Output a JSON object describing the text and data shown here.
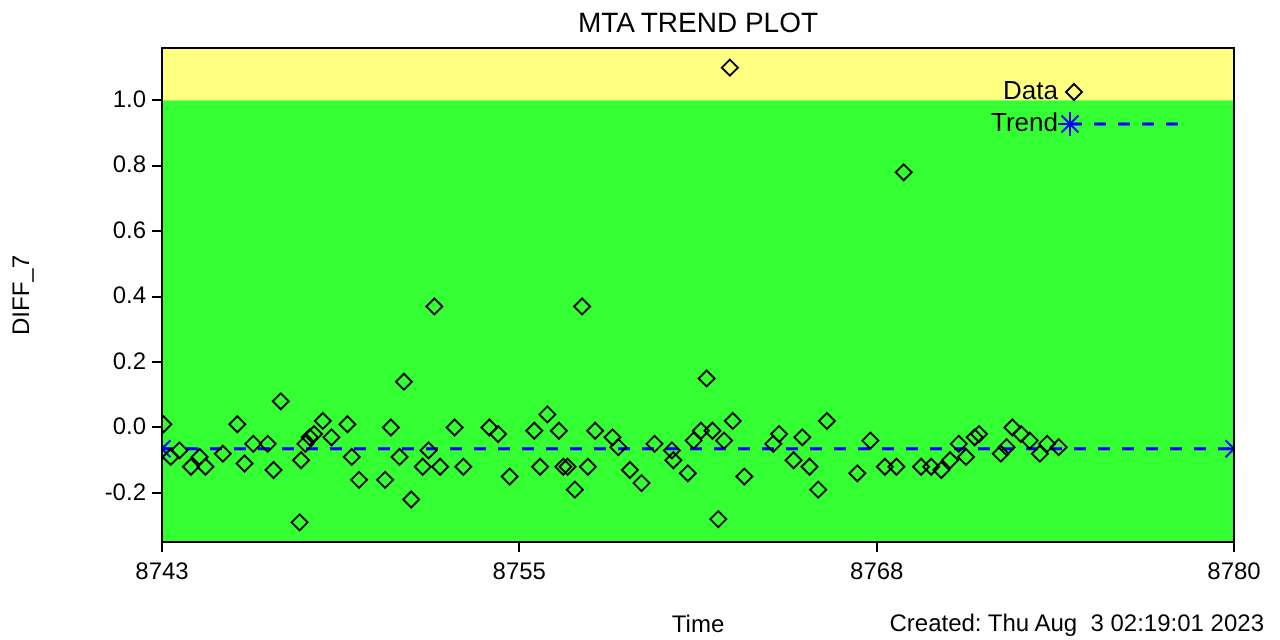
{
  "chart_data": {
    "type": "scatter",
    "title": "MTA TREND PLOT",
    "xlabel": "Time",
    "ylabel": "DIFF_7",
    "annotations": [
      "Created: Thu Aug  3 02:19:01 2023"
    ],
    "xlim": [
      8743,
      8780
    ],
    "xticks": [
      8743,
      {
        "value": 8755.33,
        "label": "8755"
      },
      {
        "value": 8767.67,
        "label": "8768"
      },
      8780
    ],
    "ylim": [
      -0.35,
      1.16
    ],
    "yticks": [
      -0.2,
      {
        "value": 0,
        "label": "0.0"
      },
      0.2,
      0.4,
      0.6,
      0.8,
      {
        "value": 1,
        "label": "1.0"
      }
    ],
    "grid": false,
    "legend": "top right",
    "bands": [
      {
        "axis": "y",
        "from": -0.35,
        "to": 1.0,
        "color": "#33ff33"
      },
      {
        "axis": "y",
        "from": 1.0,
        "to": 1.16,
        "color": "#ffff80"
      }
    ],
    "series": [
      {
        "name": "Data",
        "color": "#000000",
        "marker": "diamond",
        "x": [
          8743.05,
          8743.3,
          8743.6,
          8744.0,
          8744.3,
          8744.5,
          8745.1,
          8745.6,
          8745.85,
          8746.15,
          8746.65,
          8746.85,
          8747.1,
          8747.75,
          8747.8,
          8747.95,
          8748.1,
          8748.25,
          8748.55,
          8748.85,
          8749.4,
          8749.55,
          8749.8,
          8750.7,
          8750.9,
          8751.2,
          8751.35,
          8751.6,
          8752.0,
          8752.2,
          8752.4,
          8752.6,
          8753.1,
          8753.4,
          8754.3,
          8754.6,
          8755.0,
          8755.85,
          8756.05,
          8756.3,
          8756.7,
          8756.85,
          8757.0,
          8757.25,
          8757.5,
          8757.7,
          8757.95,
          8758.55,
          8758.75,
          8759.15,
          8759.55,
          8760.0,
          8760.6,
          8760.65,
          8761.15,
          8761.35,
          8761.6,
          8761.8,
          8762.0,
          8762.2,
          8762.4,
          8762.6,
          8762.7,
          8763.1,
          8764.1,
          8764.3,
          8764.8,
          8765.1,
          8765.35,
          8765.65,
          8765.95,
          8767.0,
          8767.45,
          8767.95,
          8768.35,
          8768.6,
          8769.2,
          8769.55,
          8769.9,
          8770.2,
          8770.5,
          8770.75,
          8771.05,
          8771.2,
          8771.95,
          8772.15,
          8772.35,
          8772.65,
          8772.95,
          8773.3,
          8773.55,
          8773.95
        ],
        "values": [
          0.01,
          -0.09,
          -0.07,
          -0.12,
          -0.09,
          -0.12,
          -0.08,
          0.01,
          -0.11,
          -0.05,
          -0.05,
          -0.13,
          0.08,
          -0.29,
          -0.1,
          -0.05,
          -0.03,
          -0.02,
          0.02,
          -0.03,
          0.01,
          -0.09,
          -0.16,
          -0.16,
          0.0,
          -0.09,
          0.14,
          -0.22,
          -0.12,
          -0.07,
          0.37,
          -0.12,
          0.0,
          -0.12,
          0.0,
          -0.02,
          -0.15,
          -0.01,
          -0.12,
          0.04,
          -0.01,
          -0.12,
          -0.12,
          -0.19,
          0.37,
          -0.12,
          -0.01,
          -0.03,
          -0.06,
          -0.13,
          -0.17,
          -0.05,
          -0.07,
          -0.1,
          -0.14,
          -0.04,
          -0.01,
          0.15,
          -0.01,
          -0.28,
          -0.04,
          1.1,
          0.02,
          -0.15,
          -0.05,
          -0.02,
          -0.1,
          -0.03,
          -0.12,
          -0.19,
          0.02,
          -0.14,
          -0.04,
          -0.12,
          -0.12,
          0.78,
          -0.12,
          -0.12,
          -0.13,
          -0.1,
          -0.05,
          -0.09,
          -0.03,
          -0.02,
          -0.08,
          -0.06,
          0.0,
          -0.02,
          -0.04,
          -0.08,
          -0.05,
          -0.06
        ]
      },
      {
        "name": "Trend",
        "type": "line",
        "color": "#0000ff",
        "marker": "cross",
        "line_style": "dashed",
        "x": [
          8743,
          8780
        ],
        "values": [
          -0.065,
          -0.065
        ]
      }
    ]
  }
}
